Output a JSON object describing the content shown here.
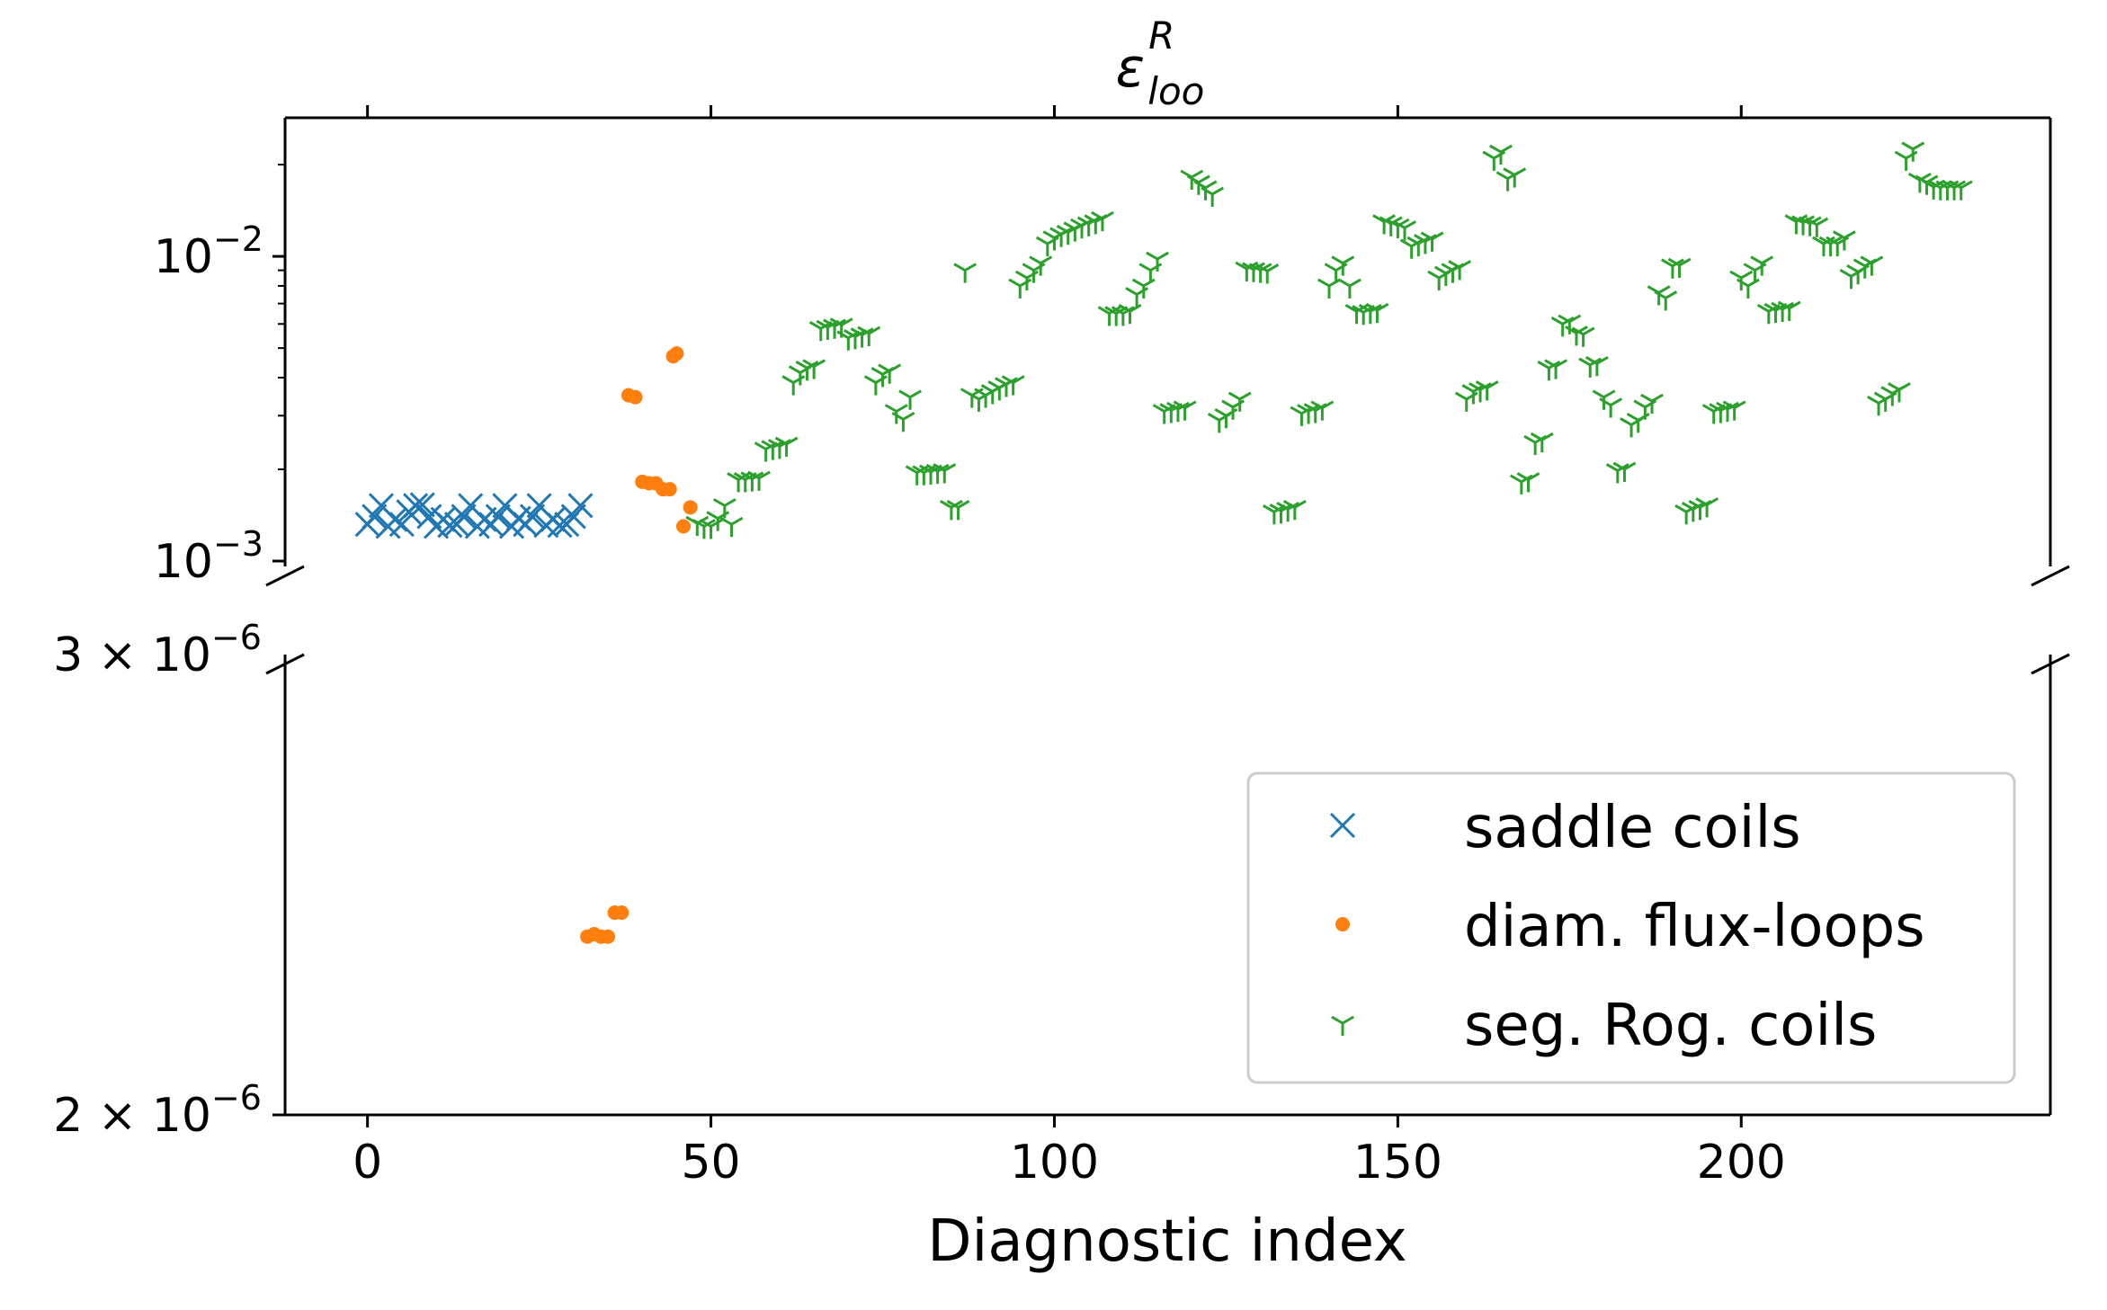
{
  "chart_data": {
    "type": "scatter",
    "title": "ε",
    "title_sup": "R",
    "title_sub": "loo",
    "xlabel": "Diagnostic index",
    "ylabel": "",
    "y_scale": "log",
    "broken_y_axis": true,
    "xlim": [
      -12,
      245
    ],
    "x_ticks": [
      0,
      50,
      100,
      150,
      200
    ],
    "x_tick_labels": [
      "0",
      "50",
      "100",
      "150",
      "200"
    ],
    "upper_panel": {
      "ylim": [
        0.00096,
        0.0285
      ],
      "y_tick_labels": [
        {
          "value": 0.01,
          "base": "10",
          "exp": "−2"
        },
        {
          "value": 0.001,
          "base": "10",
          "exp": "−3"
        }
      ]
    },
    "lower_panel": {
      "ylim": [
        2e-06,
        3e-06
      ],
      "y_tick_labels": [
        {
          "value": 3e-06,
          "base": "3 × 10",
          "exp": "−6"
        },
        {
          "value": 2e-06,
          "base": "2 × 10",
          "exp": "−6"
        }
      ]
    },
    "legend_position": "bottom-right",
    "series": [
      {
        "name": "saddle coils",
        "color": "#1f77b4",
        "marker": "x",
        "panel": "upper",
        "points": [
          [
            0,
            0.00132
          ],
          [
            1,
            0.0014
          ],
          [
            2,
            0.00152
          ],
          [
            3,
            0.0013
          ],
          [
            4,
            0.00137
          ],
          [
            5,
            0.00132
          ],
          [
            6,
            0.00145
          ],
          [
            7,
            0.00152
          ],
          [
            8,
            0.00153
          ],
          [
            9,
            0.0014
          ],
          [
            10,
            0.0013
          ],
          [
            11,
            0.00137
          ],
          [
            12,
            0.00131
          ],
          [
            13,
            0.00132
          ],
          [
            14,
            0.0014
          ],
          [
            15,
            0.00152
          ],
          [
            16,
            0.0013
          ],
          [
            17,
            0.00137
          ],
          [
            18,
            0.00132
          ],
          [
            19,
            0.0014
          ],
          [
            20,
            0.00152
          ],
          [
            21,
            0.0013
          ],
          [
            22,
            0.00138
          ],
          [
            23,
            0.00132
          ],
          [
            24,
            0.0014
          ],
          [
            25,
            0.00152
          ],
          [
            26,
            0.00131
          ],
          [
            27,
            0.00137
          ],
          [
            28,
            0.00131
          ],
          [
            29,
            0.00132
          ],
          [
            30,
            0.0014
          ],
          [
            31,
            0.00152
          ]
        ]
      },
      {
        "name": "diam. flux-loops",
        "color": "#ff7f0e",
        "marker": "dot",
        "panel": "mixed",
        "points": [
          [
            32,
            2.34e-06
          ],
          [
            33,
            2.345e-06
          ],
          [
            34,
            2.34e-06
          ],
          [
            35,
            2.34e-06
          ],
          [
            36,
            2.39e-06
          ],
          [
            37,
            2.39e-06
          ],
          [
            38,
            0.0035
          ],
          [
            39,
            0.00345
          ],
          [
            40,
            0.00182
          ],
          [
            41,
            0.0018
          ],
          [
            42,
            0.0018
          ],
          [
            43,
            0.00172
          ],
          [
            44,
            0.00172
          ],
          [
            44.5,
            0.0047
          ],
          [
            45,
            0.0048
          ],
          [
            46,
            0.0013
          ],
          [
            47,
            0.0015
          ]
        ]
      },
      {
        "name": "seg. Rog. coils",
        "color": "#2ca02c",
        "marker": "tri_down",
        "panel": "upper",
        "points": [
          [
            48,
            0.00133
          ],
          [
            49,
            0.0013
          ],
          [
            50,
            0.0013
          ],
          [
            51,
            0.00138
          ],
          [
            52,
            0.00152
          ],
          [
            53,
            0.00132
          ],
          [
            54,
            0.00185
          ],
          [
            55,
            0.00185
          ],
          [
            56,
            0.00186
          ],
          [
            57,
            0.00187
          ],
          [
            58,
            0.00233
          ],
          [
            59,
            0.00236
          ],
          [
            60,
            0.00238
          ],
          [
            61,
            0.00242
          ],
          [
            62,
            0.00385
          ],
          [
            63,
            0.00415
          ],
          [
            64,
            0.0043
          ],
          [
            65,
            0.00435
          ],
          [
            66,
            0.0058
          ],
          [
            67,
            0.00585
          ],
          [
            68,
            0.0059
          ],
          [
            69,
            0.00595
          ],
          [
            70,
            0.0054
          ],
          [
            71,
            0.00545
          ],
          [
            72,
            0.00552
          ],
          [
            73,
            0.00558
          ],
          [
            74,
            0.00385
          ],
          [
            75,
            0.0041
          ],
          [
            76,
            0.0042
          ],
          [
            77,
            0.0031
          ],
          [
            78,
            0.00292
          ],
          [
            79,
            0.00345
          ],
          [
            80,
            0.00195
          ],
          [
            81,
            0.00195
          ],
          [
            82,
            0.00196
          ],
          [
            83,
            0.00197
          ],
          [
            84,
            0.00198
          ],
          [
            85,
            0.0015
          ],
          [
            86,
            0.0015
          ],
          [
            87,
            0.009
          ],
          [
            88,
            0.0035
          ],
          [
            89,
            0.0034
          ],
          [
            90,
            0.0035
          ],
          [
            91,
            0.0036
          ],
          [
            92,
            0.0037
          ],
          [
            93,
            0.0038
          ],
          [
            94,
            0.00385
          ],
          [
            95,
            0.008
          ],
          [
            96,
            0.0085
          ],
          [
            97,
            0.009
          ],
          [
            98,
            0.0095
          ],
          [
            99,
            0.011
          ],
          [
            100,
            0.0115
          ],
          [
            101,
            0.0118
          ],
          [
            102,
            0.012
          ],
          [
            103,
            0.0123
          ],
          [
            104,
            0.0126
          ],
          [
            105,
            0.0128
          ],
          [
            106,
            0.013
          ],
          [
            107,
            0.0133
          ],
          [
            108,
            0.0065
          ],
          [
            109,
            0.0065
          ],
          [
            110,
            0.0065
          ],
          [
            111,
            0.0066
          ],
          [
            112,
            0.0075
          ],
          [
            113,
            0.008
          ],
          [
            114,
            0.009
          ],
          [
            115,
            0.0098
          ],
          [
            116,
            0.0031
          ],
          [
            117,
            0.00312
          ],
          [
            118,
            0.00315
          ],
          [
            119,
            0.00318
          ],
          [
            120,
            0.0182
          ],
          [
            121,
            0.0175
          ],
          [
            122,
            0.0168
          ],
          [
            123,
            0.016
          ],
          [
            124,
            0.0029
          ],
          [
            125,
            0.003
          ],
          [
            126,
            0.0032
          ],
          [
            127,
            0.0034
          ],
          [
            128,
            0.0091
          ],
          [
            129,
            0.00905
          ],
          [
            130,
            0.009
          ],
          [
            131,
            0.00895
          ],
          [
            132,
            0.00145
          ],
          [
            133,
            0.00146
          ],
          [
            134,
            0.00148
          ],
          [
            135,
            0.0015
          ],
          [
            136,
            0.00305
          ],
          [
            137,
            0.0031
          ],
          [
            138,
            0.00312
          ],
          [
            139,
            0.00318
          ],
          [
            140,
            0.008
          ],
          [
            141,
            0.009
          ],
          [
            142,
            0.0095
          ],
          [
            143,
            0.008
          ],
          [
            144,
            0.0066
          ],
          [
            145,
            0.00655
          ],
          [
            146,
            0.0066
          ],
          [
            147,
            0.00665
          ],
          [
            148,
            0.013
          ],
          [
            149,
            0.0128
          ],
          [
            150,
            0.0126
          ],
          [
            151,
            0.0124
          ],
          [
            152,
            0.0108
          ],
          [
            153,
            0.011
          ],
          [
            154,
            0.0112
          ],
          [
            155,
            0.0114
          ],
          [
            156,
            0.0085
          ],
          [
            157,
            0.0088
          ],
          [
            158,
            0.009
          ],
          [
            159,
            0.0092
          ],
          [
            160,
            0.0034
          ],
          [
            161,
            0.0036
          ],
          [
            162,
            0.00365
          ],
          [
            163,
            0.0037
          ],
          [
            164,
            0.021
          ],
          [
            165,
            0.022
          ],
          [
            166,
            0.018
          ],
          [
            167,
            0.0185
          ],
          [
            168,
            0.00182
          ],
          [
            169,
            0.00185
          ],
          [
            170,
            0.00245
          ],
          [
            171,
            0.0025
          ],
          [
            172,
            0.0043
          ],
          [
            173,
            0.00435
          ],
          [
            174,
            0.006
          ],
          [
            175,
            0.0061
          ],
          [
            176,
            0.0056
          ],
          [
            177,
            0.00555
          ],
          [
            178,
            0.0044
          ],
          [
            179,
            0.00445
          ],
          [
            180,
            0.00345
          ],
          [
            181,
            0.00325
          ],
          [
            182,
            0.00198
          ],
          [
            183,
            0.002
          ],
          [
            184,
            0.0028
          ],
          [
            185,
            0.0029
          ],
          [
            186,
            0.0032
          ],
          [
            187,
            0.00335
          ],
          [
            188,
            0.0076
          ],
          [
            189,
            0.0073
          ],
          [
            190,
            0.0093
          ],
          [
            191,
            0.00935
          ],
          [
            192,
            0.00145
          ],
          [
            193,
            0.00148
          ],
          [
            194,
            0.0015
          ],
          [
            195,
            0.00153
          ],
          [
            196,
            0.0031
          ],
          [
            197,
            0.00312
          ],
          [
            198,
            0.00315
          ],
          [
            199,
            0.00318
          ],
          [
            200,
            0.0085
          ],
          [
            201,
            0.008
          ],
          [
            202,
            0.009
          ],
          [
            203,
            0.0095
          ],
          [
            204,
            0.0066
          ],
          [
            205,
            0.00665
          ],
          [
            206,
            0.0067
          ],
          [
            207,
            0.00675
          ],
          [
            208,
            0.013
          ],
          [
            209,
            0.0129
          ],
          [
            210,
            0.0128
          ],
          [
            211,
            0.0127
          ],
          [
            212,
            0.011
          ],
          [
            213,
            0.011
          ],
          [
            214,
            0.011
          ],
          [
            215,
            0.0115
          ],
          [
            216,
            0.0086
          ],
          [
            217,
            0.0089
          ],
          [
            218,
            0.0093
          ],
          [
            219,
            0.0095
          ],
          [
            220,
            0.0033
          ],
          [
            221,
            0.0034
          ],
          [
            222,
            0.00355
          ],
          [
            223,
            0.00365
          ],
          [
            224,
            0.021
          ],
          [
            225,
            0.0225
          ],
          [
            226,
            0.0178
          ],
          [
            227,
            0.0175
          ],
          [
            228,
            0.0169
          ],
          [
            229,
            0.0168
          ],
          [
            230,
            0.0168
          ],
          [
            231,
            0.0168
          ],
          [
            232,
            0.0168
          ]
        ]
      }
    ]
  }
}
